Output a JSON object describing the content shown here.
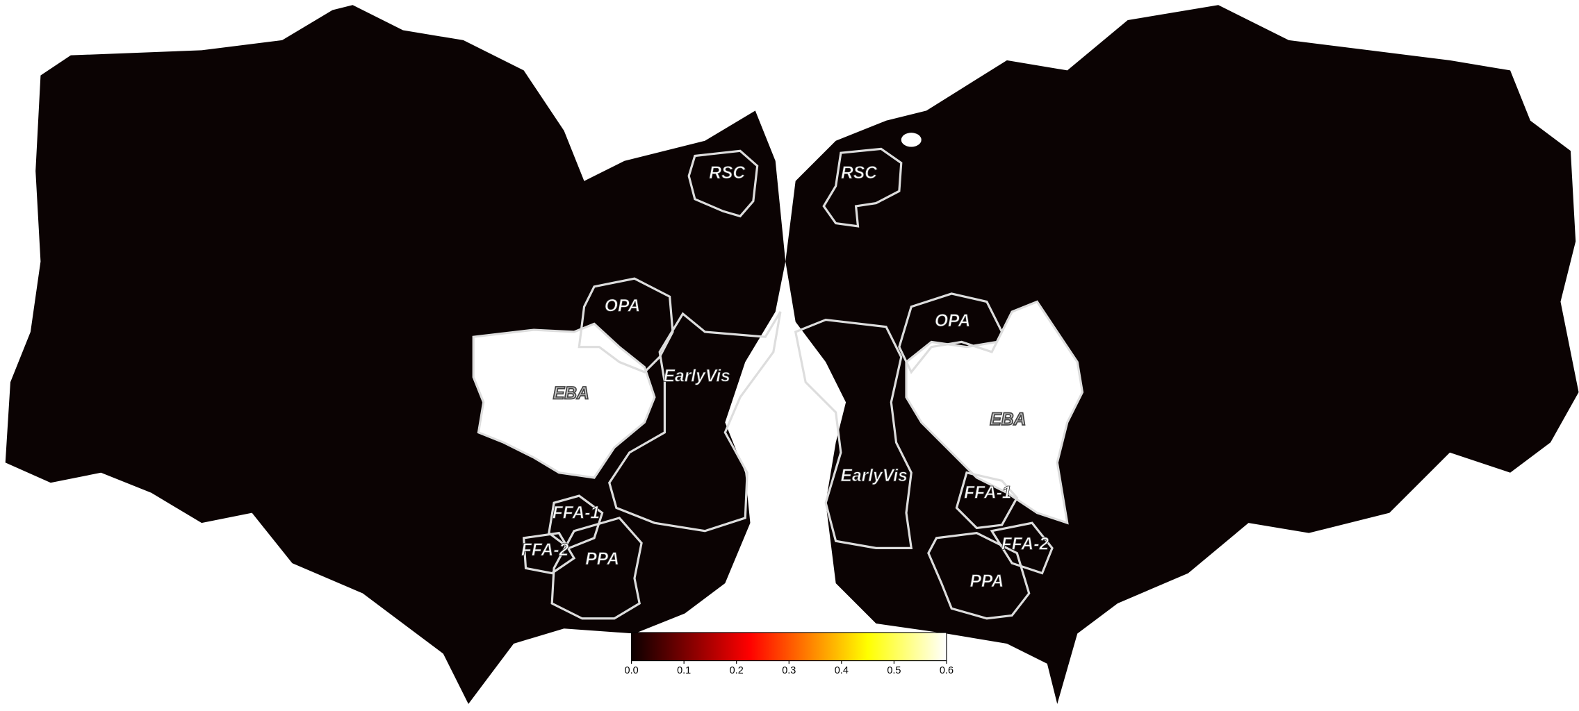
{
  "left_hemisphere": {
    "rois": [
      "RSC",
      "OPA",
      "EBA",
      "EarlyVis",
      "FFA-1",
      "FFA-2",
      "PPA"
    ]
  },
  "right_hemisphere": {
    "rois": [
      "RSC",
      "OPA",
      "EBA",
      "EarlyVis",
      "FFA-1",
      "FFA-2",
      "PPA"
    ]
  },
  "colorbar": {
    "lim": [
      0,
      0.6
    ],
    "ticks": [
      {
        "value": 0,
        "label": "0.0"
      },
      {
        "value": 0.1,
        "label": "0.1"
      },
      {
        "value": 0.2,
        "label": "0.2"
      },
      {
        "value": 0.3,
        "label": "0.3"
      },
      {
        "value": 0.4,
        "label": "0.4"
      },
      {
        "value": 0.5,
        "label": "0.5"
      },
      {
        "value": 0.6,
        "label": "0.6"
      }
    ]
  }
}
